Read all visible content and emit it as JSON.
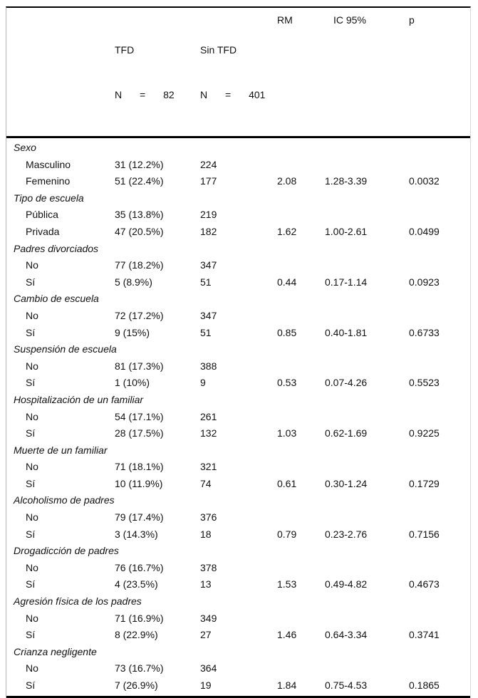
{
  "table": {
    "header": {
      "col_label": "",
      "col_tfd": {
        "line1": "TFD",
        "line2": "N = 82"
      },
      "col_sin_tfd": {
        "line1": "Sin TFD",
        "line2": "N = 401"
      },
      "col_rm": "RM",
      "col_ic": "IC 95%",
      "col_p": "p"
    },
    "sections": [
      {
        "category": "Sexo",
        "rows": [
          {
            "label": "Masculino",
            "tfd": "31 (12.2%)",
            "sin_tfd": "224",
            "rm": "",
            "ic": "",
            "p": ""
          },
          {
            "label": "Femenino",
            "tfd": "51 (22.4%)",
            "sin_tfd": "177",
            "rm": "2.08",
            "ic": "1.28-3.39",
            "p": "0.0032"
          }
        ]
      },
      {
        "category": "Tipo de escuela",
        "rows": [
          {
            "label": "Pública",
            "tfd": "35 (13.8%)",
            "sin_tfd": "219",
            "rm": "",
            "ic": "",
            "p": ""
          },
          {
            "label": "Privada",
            "tfd": "47 (20.5%)",
            "sin_tfd": "182",
            "rm": "1.62",
            "ic": "1.00-2.61",
            "p": "0.0499"
          }
        ]
      },
      {
        "category": "Padres divorciados",
        "rows": [
          {
            "label": "No",
            "tfd": "77 (18.2%)",
            "sin_tfd": "347",
            "rm": "",
            "ic": "",
            "p": ""
          },
          {
            "label": "Sí",
            "tfd": "5 (8.9%)",
            "sin_tfd": "51",
            "rm": "0.44",
            "ic": "0.17-1.14",
            "p": "0.0923"
          }
        ]
      },
      {
        "category": "Cambio de escuela",
        "rows": [
          {
            "label": "No",
            "tfd": "72 (17.2%)",
            "sin_tfd": "347",
            "rm": "",
            "ic": "",
            "p": ""
          },
          {
            "label": "Sí",
            "tfd": "9 (15%)",
            "sin_tfd": "51",
            "rm": "0.85",
            "ic": "0.40-1.81",
            "p": "0.6733"
          }
        ]
      },
      {
        "category": "Suspensión de escuela",
        "rows": [
          {
            "label": "No",
            "tfd": "81 (17.3%)",
            "sin_tfd": "388",
            "rm": "",
            "ic": "",
            "p": ""
          },
          {
            "label": "Sí",
            "tfd": "1 (10%)",
            "sin_tfd": "9",
            "rm": "0.53",
            "ic": "0.07-4.26",
            "p": "0.5523"
          }
        ]
      },
      {
        "category": "Hospitalización de un familiar",
        "rows": [
          {
            "label": "No",
            "tfd": "54 (17.1%)",
            "sin_tfd": "261",
            "rm": "",
            "ic": "",
            "p": ""
          },
          {
            "label": "Sí",
            "tfd": "28 (17.5%)",
            "sin_tfd": "132",
            "rm": "1.03",
            "ic": "0.62-1.69",
            "p": "0.9225"
          }
        ]
      },
      {
        "category": "Muerte de un familiar",
        "rows": [
          {
            "label": "No",
            "tfd": "71 (18.1%)",
            "sin_tfd": "321",
            "rm": "",
            "ic": "",
            "p": ""
          },
          {
            "label": "Sí",
            "tfd": "10 (11.9%)",
            "sin_tfd": "74",
            "rm": "0.61",
            "ic": "0.30-1.24",
            "p": "0.1729"
          }
        ]
      },
      {
        "category": "Alcoholismo de padres",
        "rows": [
          {
            "label": "No",
            "tfd": "79 (17.4%)",
            "sin_tfd": "376",
            "rm": "",
            "ic": "",
            "p": ""
          },
          {
            "label": "Sí",
            "tfd": "3 (14.3%)",
            "sin_tfd": "18",
            "rm": "0.79",
            "ic": "0.23-2.76",
            "p": "0.7156"
          }
        ]
      },
      {
        "category": "Drogadicción de padres",
        "rows": [
          {
            "label": "No",
            "tfd": "76 (16.7%)",
            "sin_tfd": "378",
            "rm": "",
            "ic": "",
            "p": ""
          },
          {
            "label": "Sí",
            "tfd": "4 (23.5%)",
            "sin_tfd": "13",
            "rm": "1.53",
            "ic": "0.49-4.82",
            "p": "0.4673"
          }
        ]
      },
      {
        "category": "Agresión física de los padres",
        "rows": [
          {
            "label": "No",
            "tfd": "71 (16.9%)",
            "sin_tfd": "349",
            "rm": "",
            "ic": "",
            "p": ""
          },
          {
            "label": "Sí",
            "tfd": "8 (22.9%)",
            "sin_tfd": "27",
            "rm": "1.46",
            "ic": "0.64-3.34",
            "p": "0.3741"
          }
        ]
      },
      {
        "category": "Crianza negligente",
        "rows": [
          {
            "label": "No",
            "tfd": "73 (16.7%)",
            "sin_tfd": "364",
            "rm": "",
            "ic": "",
            "p": ""
          },
          {
            "label": "Sí",
            "tfd": "7 (26.9%)",
            "sin_tfd": "19",
            "rm": "1.84",
            "ic": "0.75-4.53",
            "p": "0.1865"
          }
        ]
      }
    ]
  }
}
